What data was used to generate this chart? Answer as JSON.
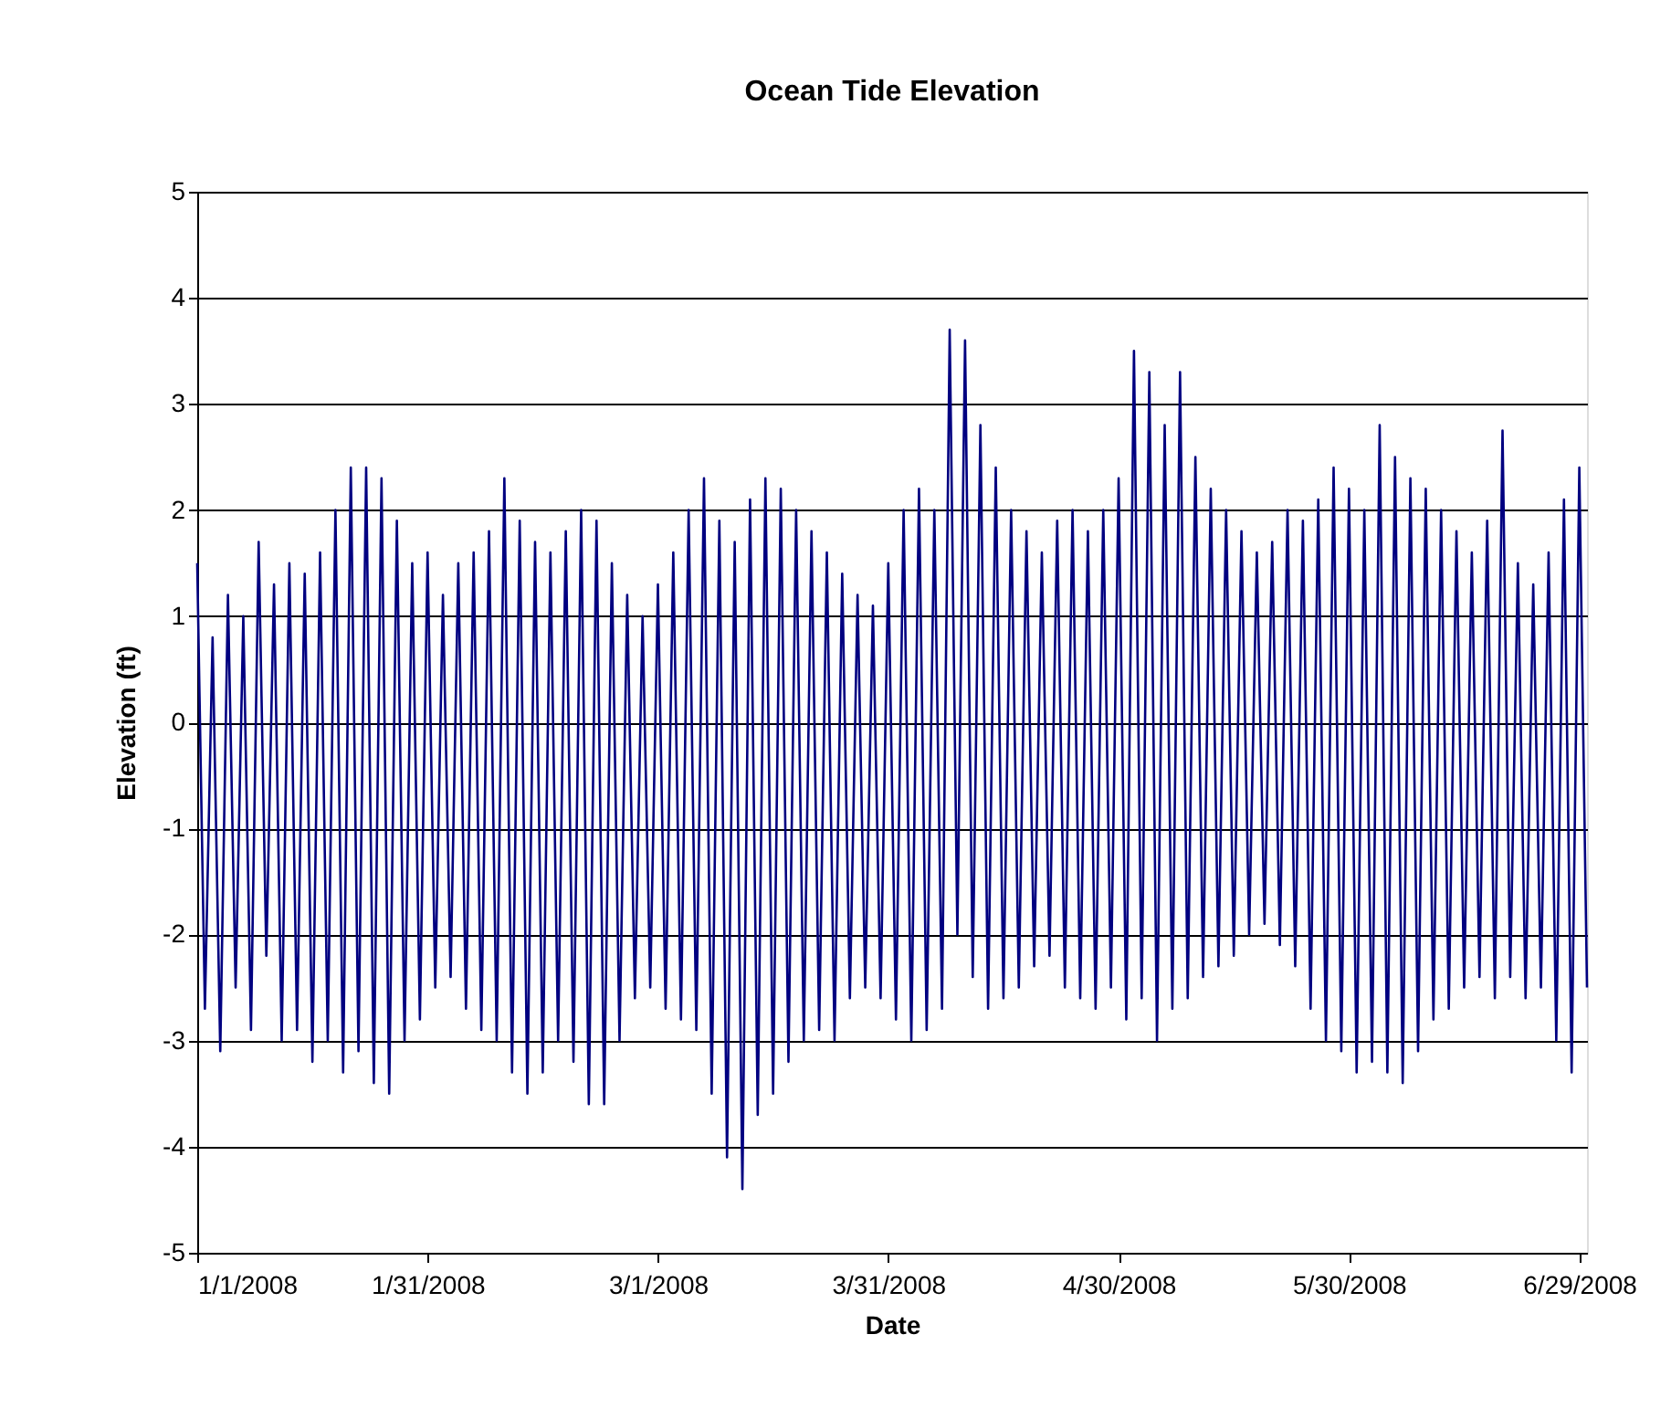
{
  "chart_data": {
    "type": "line",
    "title": "Ocean Tide Elevation",
    "xlabel": "Date",
    "ylabel": "Elevation (ft)",
    "x": [
      "2008-01-01",
      "2008-01-02",
      "2008-01-03",
      "2008-01-04",
      "2008-01-05",
      "2008-01-06",
      "2008-01-07",
      "2008-01-08",
      "2008-01-09",
      "2008-01-10",
      "2008-01-11",
      "2008-01-12",
      "2008-01-13",
      "2008-01-14",
      "2008-01-15",
      "2008-01-16",
      "2008-01-17",
      "2008-01-18",
      "2008-01-19",
      "2008-01-20",
      "2008-01-21",
      "2008-01-22",
      "2008-01-23",
      "2008-01-24",
      "2008-01-25",
      "2008-01-26",
      "2008-01-27",
      "2008-01-28",
      "2008-01-29",
      "2008-01-30",
      "2008-01-31",
      "2008-02-01",
      "2008-02-02",
      "2008-02-03",
      "2008-02-04",
      "2008-02-05",
      "2008-02-06",
      "2008-02-07",
      "2008-02-08",
      "2008-02-09",
      "2008-02-10",
      "2008-02-11",
      "2008-02-12",
      "2008-02-13",
      "2008-02-14",
      "2008-02-15",
      "2008-02-16",
      "2008-02-17",
      "2008-02-18",
      "2008-02-19",
      "2008-02-20",
      "2008-02-21",
      "2008-02-22",
      "2008-02-23",
      "2008-02-24",
      "2008-02-25",
      "2008-02-26",
      "2008-02-27",
      "2008-02-28",
      "2008-02-29",
      "2008-03-01",
      "2008-03-02",
      "2008-03-03",
      "2008-03-04",
      "2008-03-05",
      "2008-03-06",
      "2008-03-07",
      "2008-03-08",
      "2008-03-09",
      "2008-03-10",
      "2008-03-11",
      "2008-03-12",
      "2008-03-13",
      "2008-03-14",
      "2008-03-15",
      "2008-03-16",
      "2008-03-17",
      "2008-03-18",
      "2008-03-19",
      "2008-03-20",
      "2008-03-21",
      "2008-03-22",
      "2008-03-23",
      "2008-03-24",
      "2008-03-25",
      "2008-03-26",
      "2008-03-27",
      "2008-03-28",
      "2008-03-29",
      "2008-03-30",
      "2008-03-31",
      "2008-04-01",
      "2008-04-02",
      "2008-04-03",
      "2008-04-04",
      "2008-04-05",
      "2008-04-06",
      "2008-04-07",
      "2008-04-08",
      "2008-04-09",
      "2008-04-10",
      "2008-04-11",
      "2008-04-12",
      "2008-04-13",
      "2008-04-14",
      "2008-04-15",
      "2008-04-16",
      "2008-04-17",
      "2008-04-18",
      "2008-04-19",
      "2008-04-20",
      "2008-04-21",
      "2008-04-22",
      "2008-04-23",
      "2008-04-24",
      "2008-04-25",
      "2008-04-26",
      "2008-04-27",
      "2008-04-28",
      "2008-04-29",
      "2008-04-30",
      "2008-05-01",
      "2008-05-02",
      "2008-05-03",
      "2008-05-04",
      "2008-05-05",
      "2008-05-06",
      "2008-05-07",
      "2008-05-08",
      "2008-05-09",
      "2008-05-10",
      "2008-05-11",
      "2008-05-12",
      "2008-05-13",
      "2008-05-14",
      "2008-05-15",
      "2008-05-16",
      "2008-05-17",
      "2008-05-18",
      "2008-05-19",
      "2008-05-20",
      "2008-05-21",
      "2008-05-22",
      "2008-05-23",
      "2008-05-24",
      "2008-05-25",
      "2008-05-26",
      "2008-05-27",
      "2008-05-28",
      "2008-05-29",
      "2008-05-30",
      "2008-05-31",
      "2008-06-01",
      "2008-06-02",
      "2008-06-03",
      "2008-06-04",
      "2008-06-05",
      "2008-06-06",
      "2008-06-07",
      "2008-06-08",
      "2008-06-09",
      "2008-06-10",
      "2008-06-11",
      "2008-06-12",
      "2008-06-13",
      "2008-06-14",
      "2008-06-15",
      "2008-06-16",
      "2008-06-17",
      "2008-06-18",
      "2008-06-19",
      "2008-06-20",
      "2008-06-21",
      "2008-06-22",
      "2008-06-23",
      "2008-06-24",
      "2008-06-25",
      "2008-06-26",
      "2008-06-27",
      "2008-06-28",
      "2008-06-29",
      "2008-06-30"
    ],
    "series": [
      {
        "color": "#000080",
        "values": [
          1.5,
          -2.7,
          0.8,
          -3.1,
          1.2,
          -2.5,
          1.0,
          -2.9,
          1.7,
          -2.2,
          1.3,
          -3.0,
          1.5,
          -2.9,
          1.4,
          -3.2,
          1.6,
          -3.0,
          2.0,
          -3.3,
          2.4,
          -3.1,
          2.4,
          -3.4,
          2.3,
          -3.5,
          1.9,
          -3.0,
          1.5,
          -2.8,
          1.6,
          -2.5,
          1.2,
          -2.4,
          1.5,
          -2.7,
          1.6,
          -2.9,
          1.8,
          -3.0,
          2.3,
          -3.3,
          1.9,
          -3.5,
          1.7,
          -3.3,
          1.6,
          -3.0,
          1.8,
          -3.2,
          2.0,
          -3.6,
          1.9,
          -3.6,
          1.5,
          -3.0,
          1.2,
          -2.6,
          1.0,
          -2.5,
          1.3,
          -2.7,
          1.6,
          -2.8,
          2.0,
          -2.9,
          2.3,
          -3.5,
          1.9,
          -4.1,
          1.7,
          -4.4,
          2.1,
          -3.7,
          2.3,
          -3.5,
          2.2,
          -3.2,
          2.0,
          -3.0,
          1.8,
          -2.9,
          1.6,
          -3.0,
          1.4,
          -2.6,
          1.2,
          -2.5,
          1.1,
          -2.6,
          1.5,
          -2.8,
          2.0,
          -3.0,
          2.2,
          -2.9,
          2.0,
          -2.7,
          3.7,
          -2.0,
          3.6,
          -2.4,
          2.8,
          -2.7,
          2.4,
          -2.6,
          2.0,
          -2.5,
          1.8,
          -2.3,
          1.6,
          -2.2,
          1.9,
          -2.5,
          2.0,
          -2.6,
          1.8,
          -2.7,
          2.0,
          -2.5,
          2.3,
          -2.8,
          3.5,
          -2.6,
          3.3,
          -3.0,
          2.8,
          -2.7,
          3.3,
          -2.6,
          2.5,
          -2.4,
          2.2,
          -2.3,
          2.0,
          -2.2,
          1.8,
          -2.0,
          1.6,
          -1.9,
          1.7,
          -2.1,
          2.0,
          -2.3,
          1.9,
          -2.7,
          2.1,
          -3.0,
          2.4,
          -3.1,
          2.2,
          -3.3,
          2.0,
          -3.2,
          2.8,
          -3.3,
          2.5,
          -3.4,
          2.3,
          -3.1,
          2.2,
          -2.8,
          2.0,
          -2.7,
          1.8,
          -2.5,
          1.6,
          -2.4,
          1.9,
          -2.6,
          2.75,
          -2.4,
          1.5,
          -2.6,
          1.3,
          -2.5,
          1.6,
          -3.0,
          2.1,
          -3.3,
          2.4,
          -2.5
        ]
      }
    ],
    "xlim": [
      "2008-01-01",
      "2008-06-30"
    ],
    "xticks": [
      {
        "value": "2008-01-01",
        "label": "1/1/2008"
      },
      {
        "value": "2008-01-31",
        "label": "1/31/2008"
      },
      {
        "value": "2008-03-01",
        "label": "3/1/2008"
      },
      {
        "value": "2008-03-31",
        "label": "3/31/2008"
      },
      {
        "value": "2008-04-30",
        "label": "4/30/2008"
      },
      {
        "value": "2008-05-30",
        "label": "5/30/2008"
      },
      {
        "value": "2008-06-29",
        "label": "6/29/2008"
      }
    ],
    "ylim": [
      -5,
      5
    ],
    "yticks": [
      -5,
      -4,
      -3,
      -2,
      -1,
      0,
      1,
      2,
      3,
      4,
      5
    ],
    "grid": "y",
    "marker": "none",
    "line_style": "solid"
  }
}
